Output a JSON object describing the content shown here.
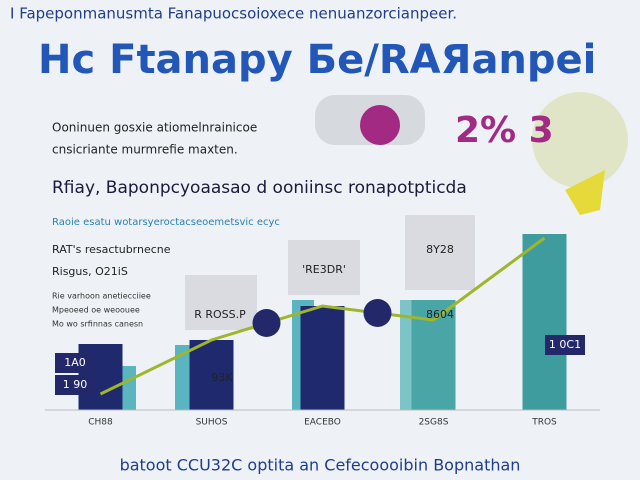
{
  "chart_data": {
    "type": "bar",
    "header": "I Fapeponmanusmta Fanapuocsoioxece nenuanzorcianpeer.",
    "title": "Hc Ftanapy Бe/RAЯanpei",
    "highlight": "2% 3",
    "intro": [
      "Ooninuen gosxie atiomelnrainicoe",
      "cnsicriante murmrefie maxten."
    ],
    "subtitle": "Rfiay, Baponpcyoaasao d ooniinsc  ronapotpticda",
    "caption": "Raoie esatu wotarsyeroctacseoemetsvic ecyc",
    "notes": [
      "RAT's resactubrnecne",
      "Risgus, O21iS",
      "Rie varhoon anetiecciiee",
      "Mpeoeed oe weoouee",
      "Mo wo srfinnas canesn"
    ],
    "annotations": [
      "1A0",
      "1 90",
      "93K",
      "R ROSS.P",
      "'RE3DR'",
      "8604",
      "1 0C1",
      "8Y28"
    ],
    "footer": "batoot CCU32C optita an Cefecoooibin Bopnathan",
    "categories": [
      "CH88",
      "SUHOS",
      "EACEBO",
      "2SG8S",
      "TROS"
    ],
    "values": [
      33,
      35,
      52,
      55,
      88
    ],
    "colors": [
      "#1f2a6e",
      "#1f2a6e",
      "#1f2a6e",
      "#4aa6a6",
      "#3e9c9f"
    ],
    "line_values": [
      8,
      35,
      52,
      45,
      86
    ],
    "line_color": "#9fb52a",
    "ylim": [
      0,
      100
    ]
  }
}
